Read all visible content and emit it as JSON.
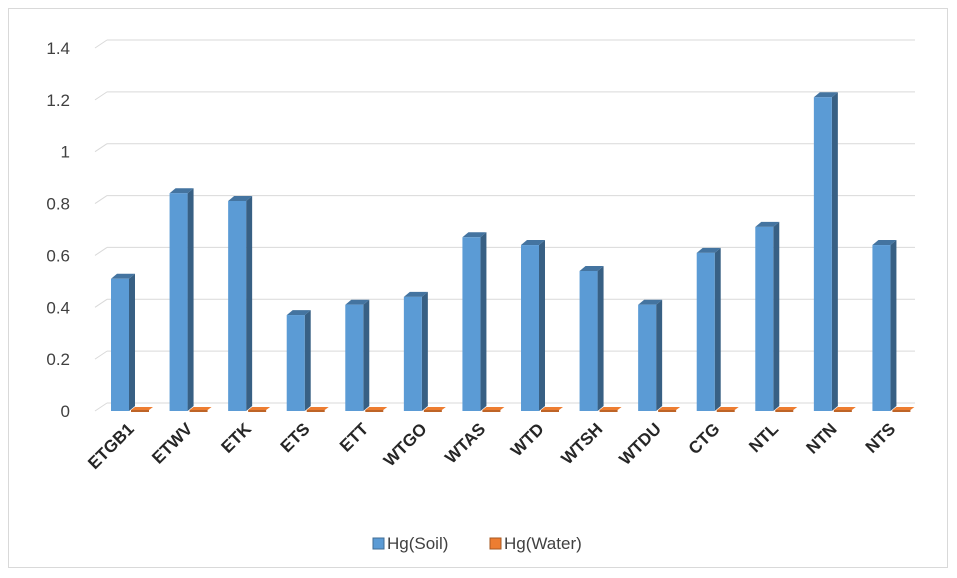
{
  "chart_data": {
    "type": "bar",
    "categories": [
      "ETGB1",
      "ETWV",
      "ETK",
      "ETS",
      "ETT",
      "WTGO",
      "WTAS",
      "WTD",
      "WTSH",
      "WTDU",
      "CTG",
      "NTL",
      "NTN",
      "NTS"
    ],
    "series": [
      {
        "name": "Hg(Soil)",
        "color": "#5b9bd5",
        "values": [
          0.51,
          0.84,
          0.81,
          0.37,
          0.41,
          0.44,
          0.67,
          0.64,
          0.54,
          0.41,
          0.61,
          0.71,
          1.21,
          0.64
        ]
      },
      {
        "name": "Hg(Water)",
        "color": "#ed7d31",
        "values": [
          0,
          0,
          0,
          0,
          0,
          0,
          0,
          0,
          0,
          0,
          0,
          0,
          0,
          0
        ]
      }
    ],
    "yticks": [
      "0",
      "0.2",
      "0.4",
      "0.6",
      "0.8",
      "1",
      "1.2",
      "1.4"
    ],
    "ylim": [
      0,
      1.4
    ],
    "title": "",
    "xlabel": "",
    "ylabel": "",
    "grid": true,
    "legend_position": "bottom",
    "style": "3d-clustered-column"
  }
}
